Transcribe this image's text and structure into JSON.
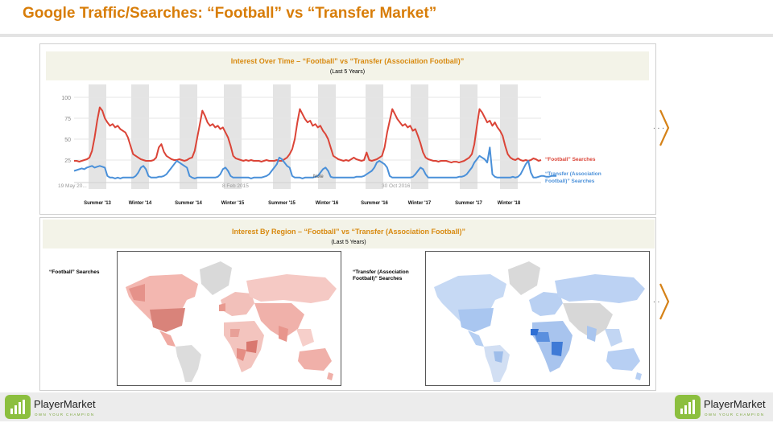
{
  "page": {
    "title": "Google Traffic/Searches: “Football” vs “Transfer Market”"
  },
  "time_panel": {
    "title": "Interest Over Time – “Football” vs “Transfer (Association Football)”",
    "subtitle": "(Last 5 Years)",
    "date_ticks": [
      "19 May 20...",
      "8 Feb 2015",
      "30 Oct 2016"
    ],
    "note": "Note",
    "football_label": "“Football” Searches",
    "transfer_label": "“Transfer (Association Football)” Searches",
    "period_labels": [
      "Summer '13",
      "Winter '14",
      "Summer '14",
      "Winter '15",
      "Summer '15",
      "Winter '16",
      "Summer '16",
      "Winter '17",
      "Summer '17",
      "Winter '18"
    ]
  },
  "region_panel": {
    "title": "Interest By Region – “Football” vs “Transfer (Association Football)”",
    "subtitle": "(Last 5 Years)",
    "football_label": "“Football” Searches",
    "transfer_label": "“Transfer (Association Football)” Searches"
  },
  "brand": {
    "name": "PlayerMarket",
    "tagline": "OWN YOUR CHAMPION"
  },
  "colors": {
    "accent": "#d87d08",
    "football": "#db4437",
    "transfer": "#4a90d9",
    "shade": "#e4e4e4"
  },
  "chart_data": {
    "type": "line",
    "title": "Interest Over Time – “Football” vs “Transfer (Association Football)”",
    "subtitle": "(Last 5 Years)",
    "ylim": [
      0,
      100
    ],
    "yticks": [
      25,
      50,
      75,
      100
    ],
    "grid": true,
    "x_unit": "weeks",
    "series": [
      {
        "name": "“Football” Searches",
        "color": "#db4437",
        "values": [
          24,
          24,
          23,
          24,
          25,
          26,
          28,
          36,
          52,
          72,
          88,
          84,
          75,
          70,
          66,
          68,
          64,
          66,
          62,
          60,
          58,
          52,
          42,
          32,
          30,
          28,
          26,
          25,
          24,
          24,
          24,
          25,
          28,
          40,
          44,
          35,
          30,
          28,
          26,
          25,
          25,
          26,
          25,
          24,
          25,
          27,
          28,
          36,
          52,
          68,
          84,
          78,
          70,
          66,
          68,
          64,
          66,
          62,
          64,
          58,
          52,
          42,
          30,
          27,
          26,
          25,
          24,
          25,
          24,
          25,
          24,
          24,
          24,
          23,
          24,
          25,
          24,
          24,
          24,
          25,
          24,
          24,
          26,
          28,
          32,
          38,
          50,
          70,
          86,
          80,
          74,
          70,
          72,
          66,
          68,
          64,
          66,
          60,
          56,
          50,
          40,
          30,
          28,
          26,
          25,
          24,
          25,
          24,
          26,
          28,
          26,
          25,
          24,
          25,
          34,
          25,
          24,
          25,
          26,
          28,
          30,
          40,
          58,
          72,
          86,
          80,
          74,
          70,
          66,
          68,
          64,
          66,
          60,
          62,
          54,
          45,
          34,
          28,
          26,
          25,
          24,
          24,
          23,
          24,
          24,
          24,
          23,
          22,
          23,
          23,
          22,
          23,
          24,
          26,
          28,
          32,
          44,
          66,
          86,
          82,
          76,
          70,
          72,
          66,
          70,
          64,
          60,
          54,
          42,
          32,
          28,
          26,
          25,
          27,
          25,
          24,
          25,
          24,
          25,
          27,
          26,
          24,
          25
        ]
      },
      {
        "name": "“Transfer (Association Football)” Searches",
        "color": "#4a90d9",
        "values": [
          12,
          13,
          14,
          15,
          14,
          16,
          17,
          18,
          16,
          17,
          18,
          17,
          16,
          6,
          4,
          4,
          3,
          4,
          3,
          4,
          4,
          4,
          4,
          4,
          6,
          10,
          16,
          18,
          14,
          6,
          4,
          4,
          4,
          5,
          5,
          6,
          8,
          12,
          16,
          20,
          24,
          22,
          20,
          18,
          16,
          6,
          4,
          3,
          4,
          4,
          4,
          4,
          4,
          4,
          4,
          4,
          5,
          8,
          14,
          16,
          12,
          6,
          4,
          4,
          4,
          4,
          4,
          4,
          4,
          3,
          4,
          4,
          4,
          4,
          5,
          6,
          8,
          12,
          16,
          20,
          28,
          26,
          22,
          18,
          16,
          6,
          4,
          4,
          4,
          3,
          4,
          4,
          4,
          4,
          5,
          6,
          10,
          14,
          16,
          12,
          5,
          4,
          4,
          4,
          4,
          4,
          4,
          4,
          4,
          4,
          5,
          5,
          5,
          6,
          8,
          10,
          12,
          16,
          22,
          24,
          22,
          20,
          16,
          6,
          4,
          4,
          4,
          4,
          4,
          4,
          4,
          4,
          5,
          8,
          12,
          16,
          14,
          8,
          4,
          4,
          4,
          4,
          4,
          4,
          4,
          4,
          4,
          4,
          4,
          4,
          5,
          5,
          6,
          8,
          12,
          16,
          22,
          26,
          30,
          28,
          26,
          22,
          40,
          8,
          5,
          4,
          4,
          4,
          4,
          4,
          4,
          5,
          4,
          5,
          8,
          14,
          20,
          24,
          10,
          4,
          4,
          5,
          6,
          6,
          5,
          5,
          6,
          6,
          6
        ]
      }
    ],
    "shaded_periods": [
      "Summer '13",
      "Winter '14",
      "Summer '14",
      "Winter '15",
      "Summer '15",
      "Winter '16",
      "Summer '16",
      "Winter '17",
      "Summer '17",
      "Winter '18"
    ]
  }
}
